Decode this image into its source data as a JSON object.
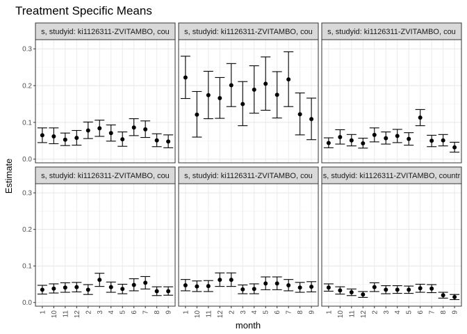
{
  "chart_data": {
    "type": "scatter",
    "title": "Treatment Specific Means",
    "xlabel": "month",
    "ylabel": "Estimate",
    "ylim": [
      -0.01,
      0.325
    ],
    "yticks": [
      "0.0",
      "0.1",
      "0.2",
      "0.3"
    ],
    "grid": true,
    "categories": [
      "1",
      "10",
      "11",
      "12",
      "2",
      "3",
      "4",
      "5",
      "6",
      "7",
      "8",
      "9"
    ],
    "panels": [
      {
        "label": "s, studyid: ki1126311-ZVITAMBO, cou",
        "points": [
          {
            "month": "1",
            "estimate": 0.065,
            "lower": 0.045,
            "upper": 0.085
          },
          {
            "month": "10",
            "estimate": 0.062,
            "lower": 0.042,
            "upper": 0.085
          },
          {
            "month": "11",
            "estimate": 0.053,
            "lower": 0.037,
            "upper": 0.071
          },
          {
            "month": "12",
            "estimate": 0.058,
            "lower": 0.038,
            "upper": 0.078
          },
          {
            "month": "2",
            "estimate": 0.078,
            "lower": 0.056,
            "upper": 0.101
          },
          {
            "month": "3",
            "estimate": 0.084,
            "lower": 0.062,
            "upper": 0.106
          },
          {
            "month": "4",
            "estimate": 0.071,
            "lower": 0.049,
            "upper": 0.093
          },
          {
            "month": "5",
            "estimate": 0.054,
            "lower": 0.035,
            "upper": 0.074
          },
          {
            "month": "6",
            "estimate": 0.086,
            "lower": 0.064,
            "upper": 0.11
          },
          {
            "month": "7",
            "estimate": 0.081,
            "lower": 0.059,
            "upper": 0.104
          },
          {
            "month": "8",
            "estimate": 0.051,
            "lower": 0.034,
            "upper": 0.069
          },
          {
            "month": "9",
            "estimate": 0.048,
            "lower": 0.031,
            "upper": 0.066
          }
        ]
      },
      {
        "label": "s, studyid: ki1126311-ZVITAMBO, cou",
        "points": [
          {
            "month": "1",
            "estimate": 0.222,
            "lower": 0.165,
            "upper": 0.28
          },
          {
            "month": "10",
            "estimate": 0.121,
            "lower": 0.06,
            "upper": 0.184
          },
          {
            "month": "11",
            "estimate": 0.174,
            "lower": 0.11,
            "upper": 0.239
          },
          {
            "month": "12",
            "estimate": 0.166,
            "lower": 0.111,
            "upper": 0.222
          },
          {
            "month": "2",
            "estimate": 0.201,
            "lower": 0.143,
            "upper": 0.26
          },
          {
            "month": "3",
            "estimate": 0.15,
            "lower": 0.091,
            "upper": 0.211
          },
          {
            "month": "4",
            "estimate": 0.189,
            "lower": 0.125,
            "upper": 0.254
          },
          {
            "month": "5",
            "estimate": 0.205,
            "lower": 0.133,
            "upper": 0.278
          },
          {
            "month": "6",
            "estimate": 0.175,
            "lower": 0.112,
            "upper": 0.238
          },
          {
            "month": "7",
            "estimate": 0.217,
            "lower": 0.143,
            "upper": 0.292
          },
          {
            "month": "8",
            "estimate": 0.122,
            "lower": 0.066,
            "upper": 0.18
          },
          {
            "month": "9",
            "estimate": 0.109,
            "lower": 0.053,
            "upper": 0.166
          }
        ]
      },
      {
        "label": "s, studyid: ki1126311-ZVITAMBO, cou",
        "points": [
          {
            "month": "1",
            "estimate": 0.044,
            "lower": 0.031,
            "upper": 0.058
          },
          {
            "month": "10",
            "estimate": 0.06,
            "lower": 0.041,
            "upper": 0.08
          },
          {
            "month": "11",
            "estimate": 0.051,
            "lower": 0.036,
            "upper": 0.067
          },
          {
            "month": "12",
            "estimate": 0.043,
            "lower": 0.03,
            "upper": 0.057
          },
          {
            "month": "2",
            "estimate": 0.066,
            "lower": 0.047,
            "upper": 0.085
          },
          {
            "month": "3",
            "estimate": 0.057,
            "lower": 0.041,
            "upper": 0.074
          },
          {
            "month": "4",
            "estimate": 0.063,
            "lower": 0.045,
            "upper": 0.081
          },
          {
            "month": "5",
            "estimate": 0.055,
            "lower": 0.038,
            "upper": 0.072
          },
          {
            "month": "6",
            "estimate": 0.113,
            "lower": 0.091,
            "upper": 0.135
          },
          {
            "month": "7",
            "estimate": 0.05,
            "lower": 0.034,
            "upper": 0.065
          },
          {
            "month": "8",
            "estimate": 0.051,
            "lower": 0.036,
            "upper": 0.067
          },
          {
            "month": "9",
            "estimate": 0.032,
            "lower": 0.019,
            "upper": 0.046
          }
        ]
      },
      {
        "label": "s, studyid: ki1126311-ZVITAMBO, cou",
        "points": [
          {
            "month": "1",
            "estimate": 0.035,
            "lower": 0.023,
            "upper": 0.047
          },
          {
            "month": "10",
            "estimate": 0.038,
            "lower": 0.026,
            "upper": 0.051
          },
          {
            "month": "11",
            "estimate": 0.041,
            "lower": 0.028,
            "upper": 0.054
          },
          {
            "month": "12",
            "estimate": 0.042,
            "lower": 0.029,
            "upper": 0.055
          },
          {
            "month": "2",
            "estimate": 0.035,
            "lower": 0.022,
            "upper": 0.049
          },
          {
            "month": "3",
            "estimate": 0.062,
            "lower": 0.044,
            "upper": 0.08
          },
          {
            "month": "4",
            "estimate": 0.042,
            "lower": 0.028,
            "upper": 0.056
          },
          {
            "month": "5",
            "estimate": 0.037,
            "lower": 0.024,
            "upper": 0.05
          },
          {
            "month": "6",
            "estimate": 0.048,
            "lower": 0.032,
            "upper": 0.065
          },
          {
            "month": "7",
            "estimate": 0.054,
            "lower": 0.037,
            "upper": 0.071
          },
          {
            "month": "8",
            "estimate": 0.031,
            "lower": 0.019,
            "upper": 0.043
          },
          {
            "month": "9",
            "estimate": 0.031,
            "lower": 0.02,
            "upper": 0.043
          }
        ]
      },
      {
        "label": "s, studyid: ki1126311-ZVITAMBO, cou",
        "points": [
          {
            "month": "1",
            "estimate": 0.047,
            "lower": 0.032,
            "upper": 0.063
          },
          {
            "month": "10",
            "estimate": 0.044,
            "lower": 0.03,
            "upper": 0.059
          },
          {
            "month": "11",
            "estimate": 0.045,
            "lower": 0.03,
            "upper": 0.06
          },
          {
            "month": "12",
            "estimate": 0.062,
            "lower": 0.044,
            "upper": 0.081
          },
          {
            "month": "2",
            "estimate": 0.062,
            "lower": 0.044,
            "upper": 0.081
          },
          {
            "month": "3",
            "estimate": 0.036,
            "lower": 0.024,
            "upper": 0.048
          },
          {
            "month": "4",
            "estimate": 0.037,
            "lower": 0.024,
            "upper": 0.051
          },
          {
            "month": "5",
            "estimate": 0.052,
            "lower": 0.035,
            "upper": 0.07
          },
          {
            "month": "6",
            "estimate": 0.052,
            "lower": 0.035,
            "upper": 0.07
          },
          {
            "month": "7",
            "estimate": 0.047,
            "lower": 0.032,
            "upper": 0.063
          },
          {
            "month": "8",
            "estimate": 0.041,
            "lower": 0.028,
            "upper": 0.055
          },
          {
            "month": "9",
            "estimate": 0.043,
            "lower": 0.029,
            "upper": 0.057
          }
        ]
      },
      {
        "label": "s, studyid: ki1126311-ZVITAMBO, countr",
        "points": [
          {
            "month": "1",
            "estimate": 0.041,
            "lower": 0.031,
            "upper": 0.051
          },
          {
            "month": "10",
            "estimate": 0.033,
            "lower": 0.023,
            "upper": 0.043
          },
          {
            "month": "11",
            "estimate": 0.028,
            "lower": 0.019,
            "upper": 0.037
          },
          {
            "month": "12",
            "estimate": 0.022,
            "lower": 0.014,
            "upper": 0.03
          },
          {
            "month": "2",
            "estimate": 0.042,
            "lower": 0.03,
            "upper": 0.054
          },
          {
            "month": "3",
            "estimate": 0.035,
            "lower": 0.024,
            "upper": 0.046
          },
          {
            "month": "4",
            "estimate": 0.035,
            "lower": 0.025,
            "upper": 0.046
          },
          {
            "month": "5",
            "estimate": 0.035,
            "lower": 0.025,
            "upper": 0.045
          },
          {
            "month": "6",
            "estimate": 0.039,
            "lower": 0.028,
            "upper": 0.05
          },
          {
            "month": "7",
            "estimate": 0.038,
            "lower": 0.027,
            "upper": 0.049
          },
          {
            "month": "8",
            "estimate": 0.02,
            "lower": 0.012,
            "upper": 0.028
          },
          {
            "month": "9",
            "estimate": 0.015,
            "lower": 0.008,
            "upper": 0.022
          }
        ]
      }
    ]
  }
}
